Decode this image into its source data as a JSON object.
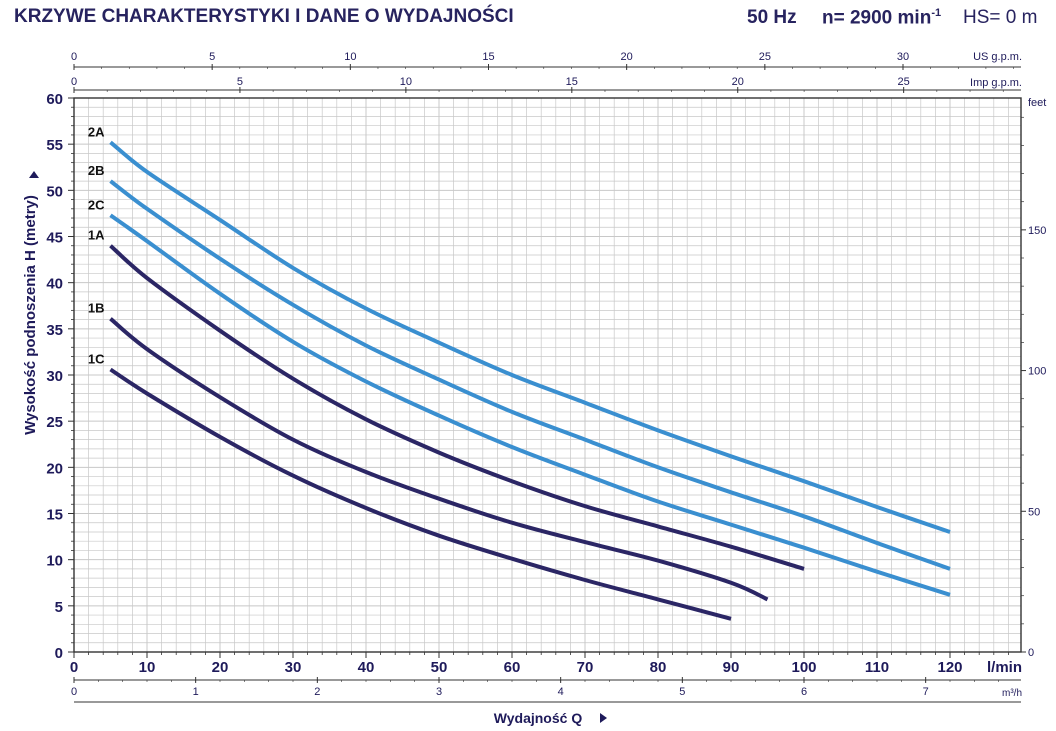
{
  "header": {
    "title": "KRZYWE CHARAKTERYSTYKI I DANE O WYDAJNOŚCI",
    "frequency": "50 Hz",
    "speed_prefix": "n= 2900 min",
    "speed_exponent": "-1",
    "hs": "HS= 0 m"
  },
  "colors": {
    "series_1": "#2b2665",
    "series_2": "#3a8fd0",
    "grid": "#c8c8c8",
    "text": "#1e1a5a"
  },
  "chart_data": {
    "type": "line",
    "title": "KRZYWE CHARAKTERYSTYKI I DANE O WYDAJNOŚCI",
    "xlabel": "Wydajność Q",
    "ylabel": "Wysokość podnoszenia  H  (metry)",
    "x_unit": "l/min",
    "x_secondary_unit": "m³/h",
    "y_secondary_unit": "feet",
    "top_axis_1_unit": "US g.p.m.",
    "top_axis_2_unit": "Imp g.p.m.",
    "xlim": [
      0,
      130
    ],
    "ylim": [
      0,
      60
    ],
    "grid": true,
    "x_ticks": [
      0,
      10,
      20,
      30,
      40,
      50,
      60,
      70,
      80,
      90,
      100,
      110,
      120
    ],
    "y_ticks": [
      0,
      5,
      10,
      15,
      20,
      25,
      30,
      35,
      40,
      45,
      50,
      55,
      60
    ],
    "m3h_ticks": [
      0,
      1,
      2,
      3,
      4,
      5,
      6,
      7
    ],
    "feet_ticks": [
      0,
      50,
      100,
      150
    ],
    "us_gpm_ticks": [
      0,
      5,
      10,
      15,
      20,
      25,
      30
    ],
    "imp_gpm_ticks": [
      0,
      5,
      10,
      15,
      20,
      25
    ],
    "series": [
      {
        "name": "2A",
        "group": 2,
        "x": [
          5,
          10,
          20,
          30,
          40,
          50,
          60,
          70,
          80,
          90,
          100,
          110,
          120
        ],
        "y": [
          55.2,
          52.0,
          46.8,
          41.6,
          37.2,
          33.5,
          30.0,
          27.0,
          24.0,
          21.2,
          18.5,
          15.7,
          13.0
        ]
      },
      {
        "name": "2B",
        "group": 2,
        "x": [
          5,
          10,
          20,
          30,
          40,
          50,
          60,
          70,
          80,
          90,
          100,
          110,
          120
        ],
        "y": [
          51.0,
          48.0,
          42.6,
          37.6,
          33.2,
          29.5,
          26.0,
          23.0,
          20.0,
          17.3,
          14.7,
          11.8,
          9.0
        ]
      },
      {
        "name": "2C",
        "group": 2,
        "x": [
          5,
          10,
          20,
          30,
          40,
          50,
          60,
          70,
          80,
          90,
          100,
          110,
          120
        ],
        "y": [
          47.3,
          44.5,
          38.8,
          33.6,
          29.3,
          25.6,
          22.2,
          19.2,
          16.3,
          13.8,
          11.3,
          8.7,
          6.2
        ]
      },
      {
        "name": "1A",
        "group": 1,
        "x": [
          5,
          10,
          20,
          30,
          40,
          50,
          60,
          70,
          80,
          90,
          100
        ],
        "y": [
          44.0,
          40.5,
          34.8,
          29.6,
          25.2,
          21.6,
          18.5,
          15.8,
          13.6,
          11.4,
          9.0
        ]
      },
      {
        "name": "1B",
        "group": 1,
        "x": [
          5,
          10,
          20,
          30,
          40,
          50,
          60,
          70,
          80,
          90,
          95
        ],
        "y": [
          36.1,
          32.8,
          27.6,
          23.0,
          19.5,
          16.6,
          14.0,
          11.9,
          9.9,
          7.5,
          5.7
        ]
      },
      {
        "name": "1C",
        "group": 1,
        "x": [
          5,
          10,
          20,
          30,
          40,
          50,
          60,
          70,
          80,
          90
        ],
        "y": [
          30.6,
          28.0,
          23.3,
          19.1,
          15.6,
          12.6,
          10.1,
          7.8,
          5.7,
          3.6
        ]
      }
    ]
  }
}
